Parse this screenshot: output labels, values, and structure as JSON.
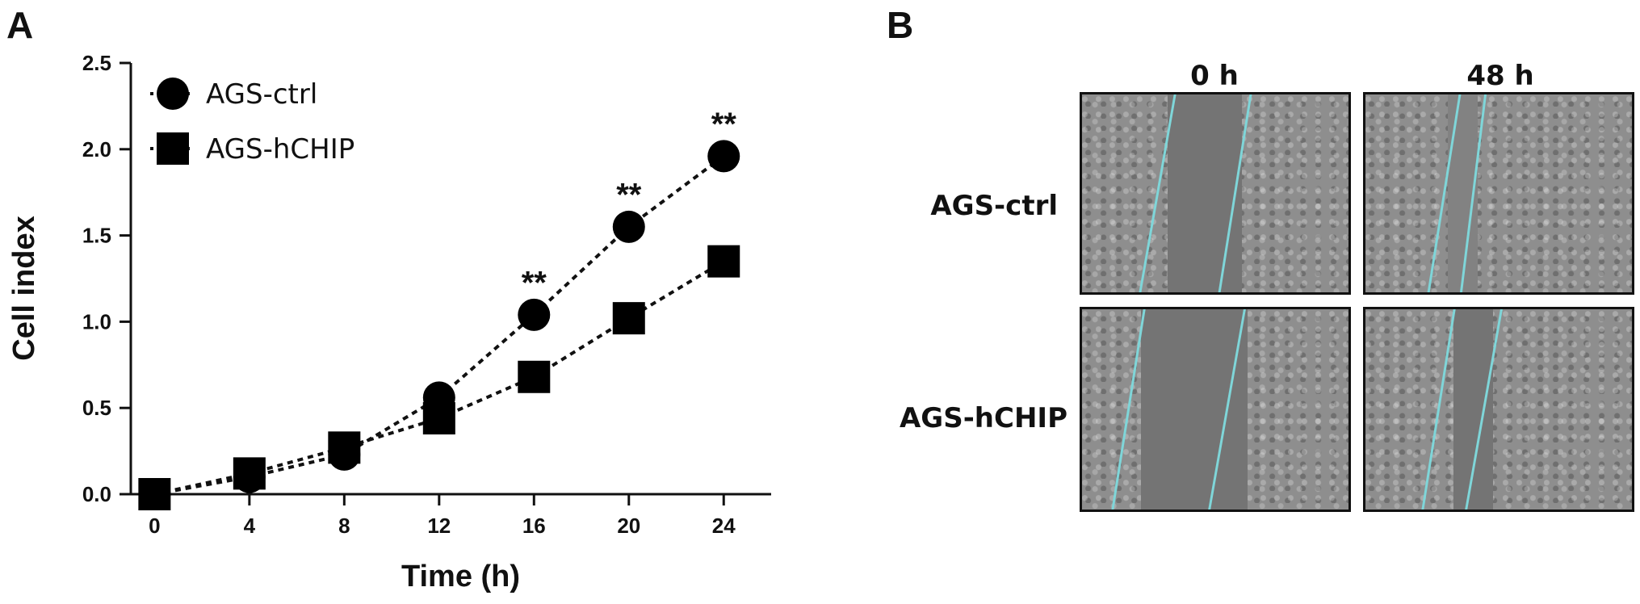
{
  "panels": {
    "a_label": "A",
    "b_label": "B"
  },
  "chart_data": {
    "type": "line",
    "xlabel": "Time (h)",
    "ylabel": "Cell index",
    "x": [
      0,
      4,
      8,
      12,
      16,
      20,
      24
    ],
    "xticks": [
      "0",
      "4",
      "8",
      "12",
      "16",
      "20",
      "24"
    ],
    "yticks": [
      "0.0",
      "0.5",
      "1.0",
      "1.5",
      "2.0",
      "2.5"
    ],
    "ylim": [
      0,
      2.5
    ],
    "xlim": [
      -1,
      26
    ],
    "legend_position": "top-left",
    "series": [
      {
        "name": "AGS-ctrl",
        "marker": "circle",
        "values": [
          0.0,
          0.1,
          0.23,
          0.56,
          1.04,
          1.55,
          1.96
        ]
      },
      {
        "name": "AGS-hCHIP",
        "marker": "square",
        "values": [
          0.0,
          0.12,
          0.27,
          0.44,
          0.68,
          1.02,
          1.35
        ]
      }
    ],
    "annotations": [
      {
        "x": 16,
        "y": 1.23,
        "text": "**"
      },
      {
        "x": 20,
        "y": 1.74,
        "text": "**"
      },
      {
        "x": 24,
        "y": 2.15,
        "text": "**"
      }
    ]
  },
  "micrographs": {
    "columns": [
      "0 h",
      "48 h"
    ],
    "rows": [
      "AGS-ctrl",
      "AGS-hCHIP"
    ],
    "edge_color": "#7fd6d9"
  }
}
